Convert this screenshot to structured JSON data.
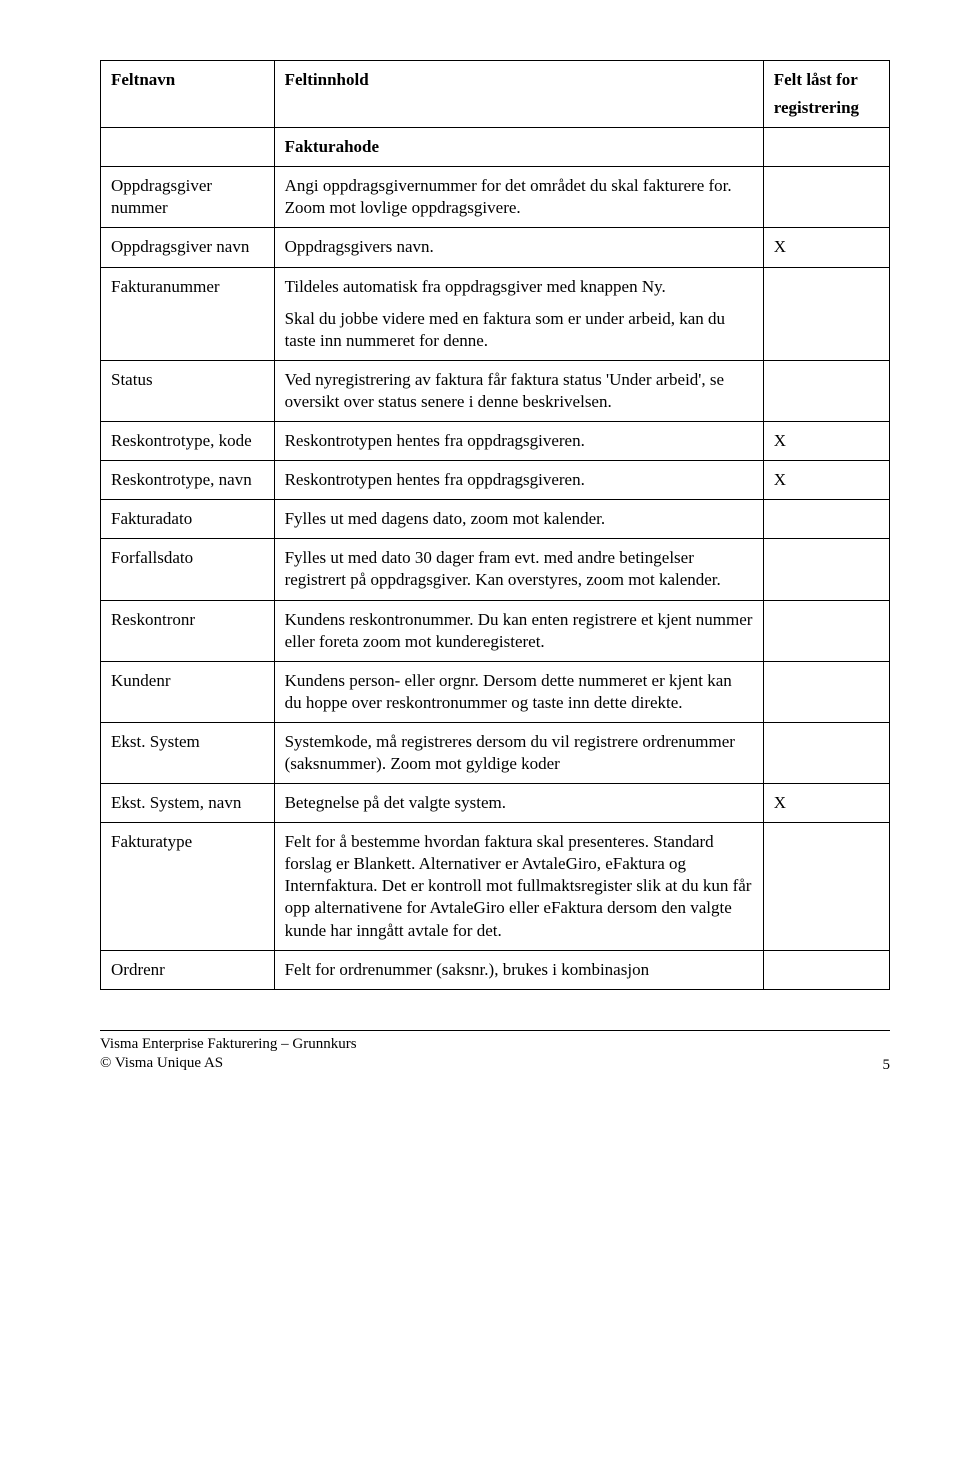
{
  "header": {
    "col1": "Feltnavn",
    "col2": "Feltinnhold",
    "col3_line1": "Felt låst for",
    "col3_line2": "registrering"
  },
  "section_header": "Fakturahode",
  "rows": [
    {
      "name": "Oppdragsgiver nummer",
      "content": [
        "Angi oppdragsgivernummer for det området du skal fakturere for. Zoom mot lovlige oppdragsgivere."
      ],
      "locked": ""
    },
    {
      "name": "Oppdragsgiver navn",
      "content": [
        "Oppdragsgivers navn."
      ],
      "locked": "X"
    },
    {
      "name": "Fakturanummer",
      "content": [
        "Tildeles automatisk fra oppdragsgiver med knappen Ny.",
        "Skal du jobbe videre med en faktura som er under arbeid, kan du taste inn nummeret for denne."
      ],
      "locked": ""
    },
    {
      "name": "Status",
      "content": [
        "Ved nyregistrering av faktura får faktura status 'Under arbeid', se oversikt over status senere i denne beskrivelsen."
      ],
      "locked": ""
    },
    {
      "name": "Reskontrotype, kode",
      "content": [
        "Reskontrotypen  hentes fra oppdragsgiveren."
      ],
      "locked": "X"
    },
    {
      "name": "Reskontrotype, navn",
      "content": [
        "Reskontrotypen hentes fra oppdragsgiveren."
      ],
      "locked": "X"
    },
    {
      "name": "Fakturadato",
      "content": [
        "Fylles ut med dagens dato, zoom  mot kalender."
      ],
      "locked": ""
    },
    {
      "name": "Forfallsdato",
      "content": [
        "Fylles ut med dato 30 dager fram evt. med andre betingelser registrert på oppdragsgiver. Kan overstyres,  zoom mot kalender."
      ],
      "locked": ""
    },
    {
      "name": "Reskontronr",
      "content": [
        "Kundens reskontronummer. Du kan enten registrere et kjent nummer eller foreta zoom mot kunderegisteret."
      ],
      "locked": ""
    },
    {
      "name": "Kundenr",
      "content": [
        "Kundens person- eller orgnr.  Dersom dette nummeret er kjent kan du hoppe over reskontronummer og taste inn dette direkte."
      ],
      "locked": ""
    },
    {
      "name": "Ekst. System",
      "content": [
        "Systemkode, må registreres dersom du vil registrere ordrenummer (saksnummer). Zoom mot gyldige koder"
      ],
      "locked": ""
    },
    {
      "name": "Ekst. System, navn",
      "content": [
        "Betegnelse på det valgte system."
      ],
      "locked": "X"
    },
    {
      "name": "Fakturatype",
      "content": [
        "Felt for å bestemme hvordan faktura skal presenteres. Standard forslag er Blankett. Alternativer er AvtaleGiro, eFaktura og Internfaktura. Det  er kontroll mot fullmaktsregister slik at du kun får opp alternativene for AvtaleGiro eller eFaktura dersom den valgte kunde har inngått avtale for det."
      ],
      "locked": ""
    },
    {
      "name": "Ordrenr",
      "content": [
        "Felt for ordrenummer (saksnr.), brukes i kombinasjon"
      ],
      "locked": ""
    }
  ],
  "footer": {
    "line1": "Visma Enterprise Fakturering – Grunnkurs",
    "line2": "© Visma Unique AS",
    "page": "5"
  }
}
